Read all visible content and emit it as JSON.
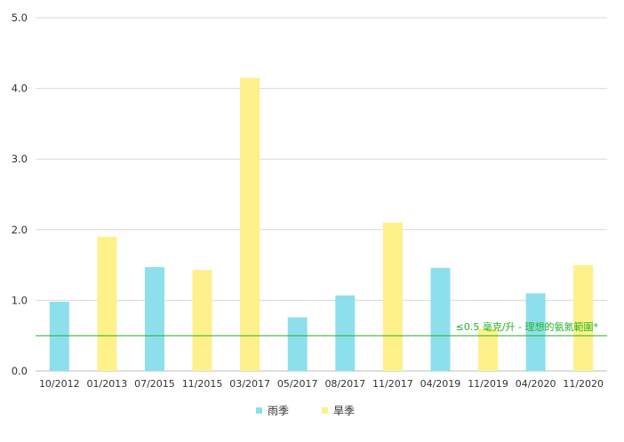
{
  "chart_data": {
    "type": "bar",
    "categories": [
      "10/2012",
      "01/2013",
      "07/2015",
      "11/2015",
      "03/2017",
      "05/2017",
      "08/2017",
      "11/2017",
      "04/2019",
      "11/2019",
      "04/2020",
      "11/2020"
    ],
    "values": [
      0.98,
      1.9,
      1.47,
      1.43,
      4.15,
      0.76,
      1.07,
      2.1,
      1.46,
      0.6,
      1.1,
      1.5
    ],
    "season": [
      "wet",
      "dry",
      "wet",
      "dry",
      "dry",
      "wet",
      "wet",
      "dry",
      "wet",
      "dry",
      "wet",
      "dry"
    ],
    "series": [
      {
        "key": "wet",
        "name": "雨季",
        "color": "#8de0eb"
      },
      {
        "key": "dry",
        "name": "旱季",
        "color": "#fef08a"
      }
    ],
    "ylim": [
      0,
      5
    ],
    "yticks": [
      "0.0",
      "1.0",
      "2.0",
      "3.0",
      "4.0",
      "5.0"
    ],
    "grid": true,
    "legend_position": "bottom",
    "reference_line": {
      "value": 0.5,
      "label": "≤0.5 毫克/升 - 理想的氨氮範圍*",
      "color": "#22b322"
    }
  }
}
